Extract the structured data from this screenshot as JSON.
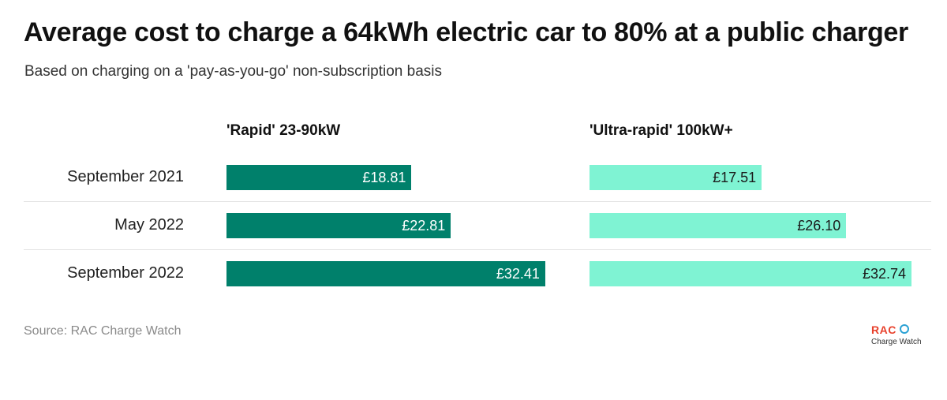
{
  "chart_data": {
    "type": "bar",
    "title": "Average cost to charge a 64kWh electric car to 80% at a public charger",
    "subtitle": "Based on charging on a 'pay-as-you-go' non-subscription basis",
    "categories": [
      "September 2021",
      "May 2022",
      "September 2022"
    ],
    "series": [
      {
        "name": "'Rapid' 23-90kW",
        "values": [
          18.81,
          22.81,
          32.41
        ],
        "labels": [
          "£18.81",
          "£22.81",
          "£32.41"
        ],
        "color": "#00806b"
      },
      {
        "name": "'Ultra-rapid' 100kW+",
        "values": [
          17.51,
          26.1,
          32.74
        ],
        "labels": [
          "£17.51",
          "£26.10",
          "£32.74"
        ],
        "color": "#7ff3d3"
      }
    ],
    "orientation": "horizontal",
    "layout": "small-multiples",
    "xlim": [
      0,
      32.74
    ],
    "grid": false,
    "source": "Source: RAC Charge Watch"
  },
  "logo": {
    "brand": "RAC",
    "subtitle": "Charge Watch",
    "brand_color": "#e8412c",
    "accent_color": "#2aa1d4"
  }
}
